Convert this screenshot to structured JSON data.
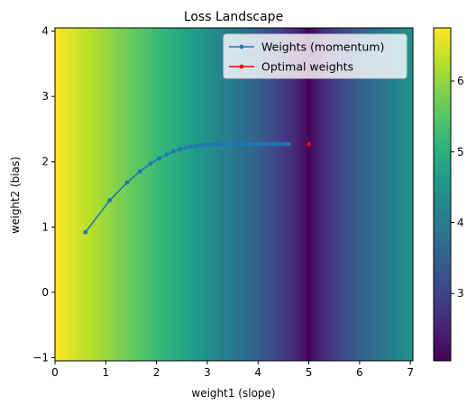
{
  "chart_data": {
    "type": "heatmap",
    "title": "Loss Landscape",
    "xlabel": "weight1 (slope)",
    "ylabel": "weight2 (bias)",
    "xlim": [
      0,
      7.05
    ],
    "ylim": [
      -1.05,
      4.05
    ],
    "x_ticks": [
      "0",
      "1",
      "2",
      "3",
      "4",
      "5",
      "6",
      "7"
    ],
    "y_ticks": [
      "−1",
      "0",
      "1",
      "2",
      "3",
      "4"
    ],
    "colormap": "viridis",
    "colorbar": {
      "range": [
        2.05,
        6.75
      ],
      "ticks": [
        "3",
        "4",
        "5",
        "6"
      ]
    },
    "heatmap_model": {
      "description": "loss varies along weight1 only",
      "min_at_weight1": 5.0,
      "min_value": 2.05,
      "max_value": 6.75
    },
    "legend": {
      "position": "upper right",
      "entries": [
        {
          "label": "Weights (momentum)",
          "color": "#1f77b4"
        },
        {
          "label": "Optimal weights",
          "color": "#ff0000"
        }
      ]
    },
    "series": [
      {
        "name": "Weights (momentum)",
        "color": "#1f77b4",
        "x": [
          0.6,
          1.08,
          1.42,
          1.67,
          1.88,
          2.05,
          2.2,
          2.34,
          2.46,
          2.57,
          2.67,
          2.77,
          2.86,
          2.95,
          3.03,
          3.11,
          3.19,
          3.27,
          3.35,
          3.43,
          3.51,
          3.59,
          3.67,
          3.75,
          3.83,
          3.91,
          3.99,
          4.07,
          4.15,
          4.23,
          4.31,
          4.39,
          4.47,
          4.55,
          4.6
        ],
        "y": [
          0.92,
          1.41,
          1.68,
          1.85,
          1.97,
          2.05,
          2.11,
          2.16,
          2.19,
          2.21,
          2.23,
          2.24,
          2.25,
          2.26,
          2.26,
          2.27,
          2.27,
          2.27,
          2.27,
          2.27,
          2.27,
          2.27,
          2.27,
          2.27,
          2.27,
          2.27,
          2.27,
          2.27,
          2.27,
          2.27,
          2.27,
          2.27,
          2.27,
          2.27,
          2.27
        ]
      },
      {
        "name": "Optimal weights",
        "color": "#ff0000",
        "x": [
          5.0
        ],
        "y": [
          2.27
        ]
      }
    ]
  }
}
